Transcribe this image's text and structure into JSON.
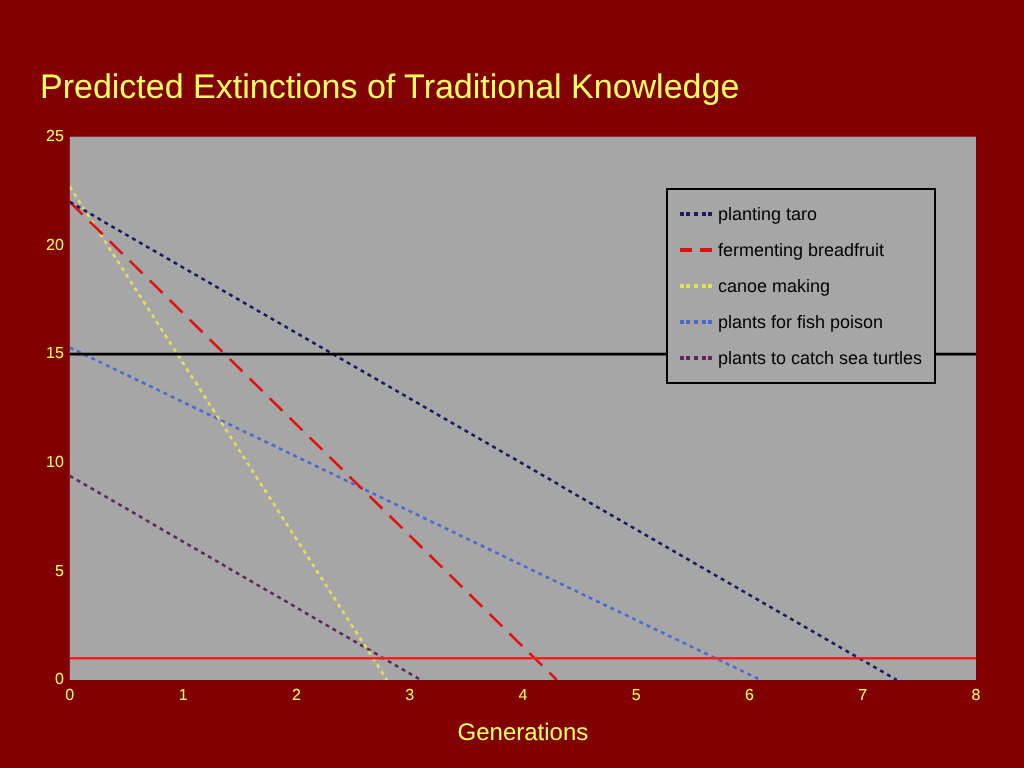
{
  "chart_data": {
    "type": "line",
    "title": "Predicted Extinctions of Traditional Knowledge",
    "xlabel": "Generations",
    "xlim": [
      0,
      8
    ],
    "xticks": [
      0,
      1,
      2,
      3,
      4,
      5,
      6,
      7,
      8
    ],
    "ylim": [
      0,
      25
    ],
    "yticks": [
      0,
      5,
      10,
      15,
      20,
      25
    ],
    "grid": false,
    "legend": "top right",
    "marker": "none",
    "series": [
      {
        "name": "planting taro",
        "color": "#1a1a5e",
        "line_style": "dotted",
        "x": [
          0,
          7.3
        ],
        "values": [
          22,
          0
        ]
      },
      {
        "name": "fermenting breadfruit",
        "color": "#e01010",
        "line_style": "dashed",
        "x": [
          0,
          4.3
        ],
        "values": [
          22,
          0
        ]
      },
      {
        "name": "canoe making",
        "color": "#e0e060",
        "line_style": "dotted",
        "x": [
          0,
          2.8
        ],
        "values": [
          22.7,
          0
        ]
      },
      {
        "name": "plants for fish poison",
        "color": "#4a6ad0",
        "line_style": "dotted",
        "x": [
          0,
          6.1
        ],
        "values": [
          15.3,
          0
        ]
      },
      {
        "name": "plants to catch sea turtles",
        "color": "#5a2a5a",
        "line_style": "dotted",
        "x": [
          0,
          3.1
        ],
        "values": [
          9.4,
          0
        ]
      }
    ],
    "ref_lines": [
      {
        "axis": "y",
        "value": 15,
        "color": "#000000"
      },
      {
        "axis": "y",
        "value": 1,
        "color": "#ff2020"
      }
    ]
  }
}
